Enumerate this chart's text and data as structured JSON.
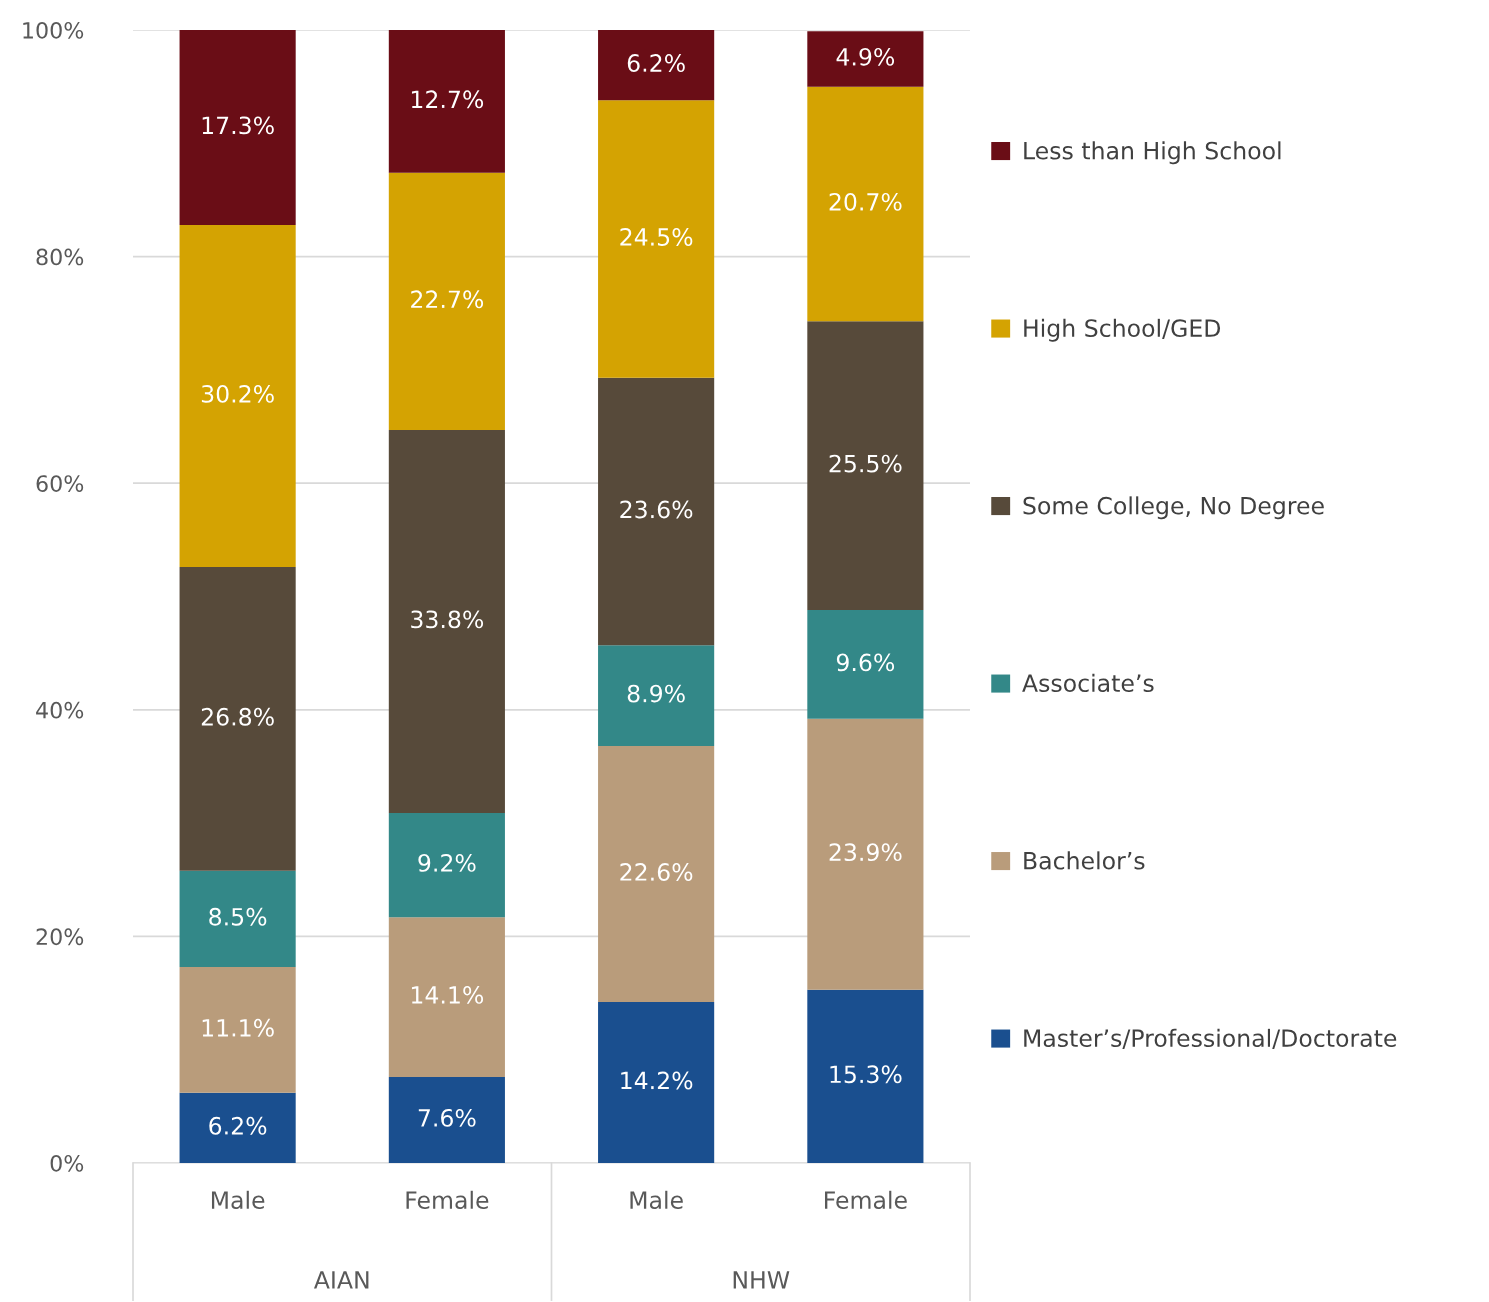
{
  "chart_data": {
    "type": "bar",
    "stacked": true,
    "categories": [
      "Male",
      "Female",
      "Male",
      "Female"
    ],
    "annotations": [
      "AIAN",
      "NHW"
    ],
    "series": [
      {
        "name": "Master’s/Professional/Doctorate",
        "color": "#1a4f8f",
        "values": [
          6.2,
          7.6,
          14.2,
          15.3
        ],
        "value_labels": [
          "6.2%",
          "7.6%",
          "14.2%",
          "15.3%"
        ]
      },
      {
        "name": "Bachelor’s",
        "color": "#b99c7b",
        "values": [
          11.1,
          14.1,
          22.6,
          23.9
        ],
        "value_labels": [
          "11.1%",
          "14.1%",
          "22.6%",
          "23.9%"
        ]
      },
      {
        "name": "Associate’s",
        "color": "#338888",
        "values": [
          8.5,
          9.2,
          8.9,
          9.6
        ],
        "value_labels": [
          "8.5%",
          "9.2%",
          "8.9%",
          "9.6%"
        ]
      },
      {
        "name": "Some College, No Degree",
        "color": "#574a3a",
        "values": [
          26.8,
          33.8,
          23.6,
          25.5
        ],
        "value_labels": [
          "26.8%",
          "33.8%",
          "23.6%",
          "25.5%"
        ]
      },
      {
        "name": "High School/GED",
        "color": "#d4a302",
        "values": [
          30.2,
          22.7,
          24.5,
          20.7
        ],
        "value_labels": [
          "30.2%",
          "22.7%",
          "24.5%",
          "20.7%"
        ]
      },
      {
        "name": "Less than High School",
        "color": "#6a0d16",
        "values": [
          17.3,
          12.7,
          6.2,
          4.9
        ],
        "value_labels": [
          "17.3%",
          "12.7%",
          "6.2%",
          "4.9%"
        ]
      }
    ],
    "ylim": [
      0,
      100
    ],
    "yticks": [
      {
        "value": 0,
        "label": "0%"
      },
      {
        "value": 20,
        "label": "20%"
      },
      {
        "value": 40,
        "label": "40%"
      },
      {
        "value": 60,
        "label": "60%"
      },
      {
        "value": 80,
        "label": "80%"
      },
      {
        "value": 100,
        "label": "100%"
      }
    ],
    "grid": "y",
    "legend": "right"
  }
}
